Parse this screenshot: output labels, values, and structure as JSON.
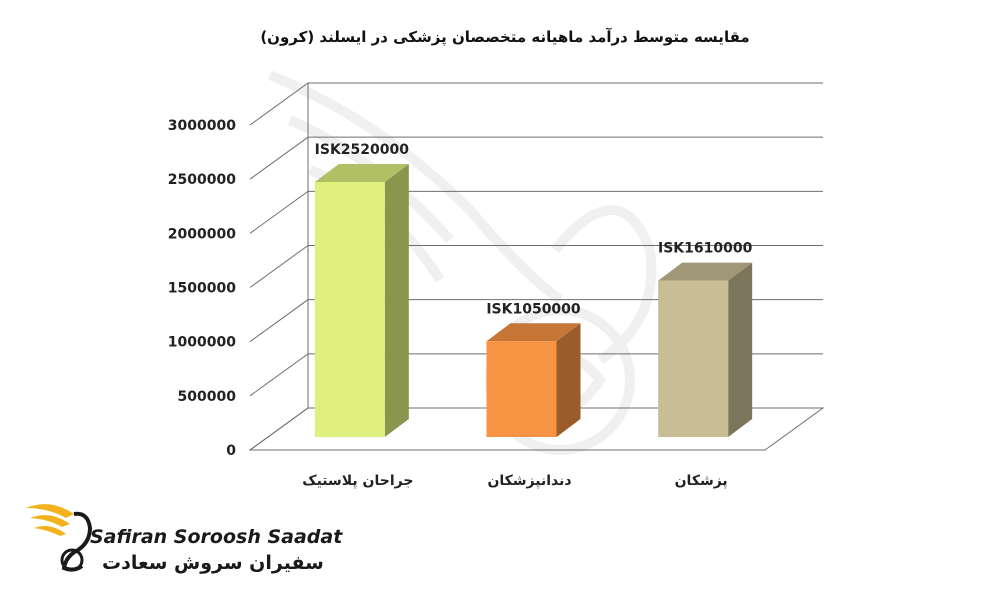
{
  "colors": {
    "bar_1": "#dff07e",
    "bar_2": "#f79443",
    "bar_3": "#c8bd93",
    "grid": "#6e6e6e",
    "logo_gold": "#f2b21b"
  },
  "chart_data": {
    "type": "bar",
    "title": "مقایسه متوسط درآمد ماهیانه متخصصان پزشکی در ایسلند (کرون)",
    "categories": [
      "جراحان پلاستیک",
      "دندانپزشکان",
      "پزشکان"
    ],
    "values": [
      2520000,
      1050000,
      1610000
    ],
    "data_labels": [
      "ISK2520000",
      "ISK1050000",
      "ISK1610000"
    ],
    "y_ticks": [
      "0",
      "500000",
      "1000000",
      "1500000",
      "2000000",
      "2500000",
      "3000000"
    ],
    "ylim": [
      0,
      3000000
    ],
    "xlabel": "",
    "ylabel": "",
    "grid": true,
    "style": "3d-bar"
  },
  "logo": {
    "name_en": "Safiran Soroosh Saadat",
    "name_fa": "سفیران سروش سعادت",
    "icon": "golden-wing-bird-logo"
  }
}
